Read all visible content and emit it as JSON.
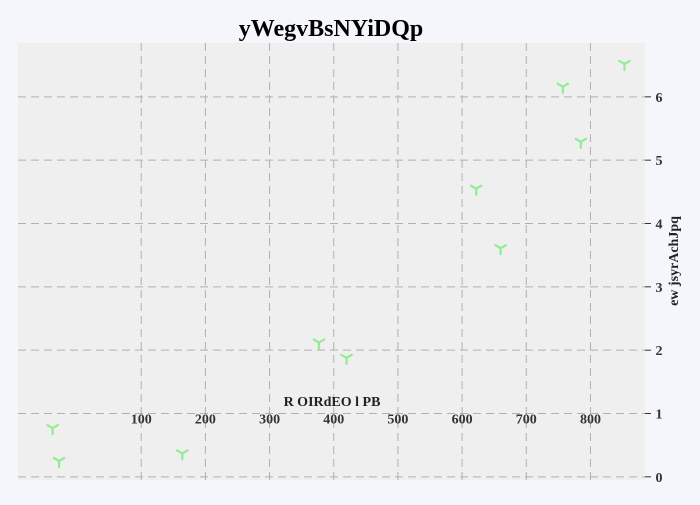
{
  "chart_data": {
    "type": "scatter",
    "title": "yWegvBsNYiDQp",
    "xlabel": "R OIRdEO l PB",
    "ylabel": "ew jsyrAchJpq",
    "xlim": [
      -92,
      885
    ],
    "ylim": [
      -0.05,
      6.85
    ],
    "x_ticks": [
      100,
      200,
      300,
      400,
      500,
      600,
      700,
      800
    ],
    "y_ticks": [
      0,
      1,
      2,
      3,
      4,
      5,
      6
    ],
    "grid": true,
    "marker": "tri-down",
    "marker_color": "#90ee90",
    "background_color": "#efefef",
    "page_color": "#f4f6fc",
    "series": [
      {
        "x": [
          -38,
          -28,
          164,
          377,
          420,
          622,
          660,
          757,
          785,
          853
        ],
        "y": [
          0.77,
          0.25,
          0.37,
          2.12,
          1.88,
          4.55,
          3.61,
          6.16,
          5.29,
          6.52
        ]
      }
    ]
  }
}
